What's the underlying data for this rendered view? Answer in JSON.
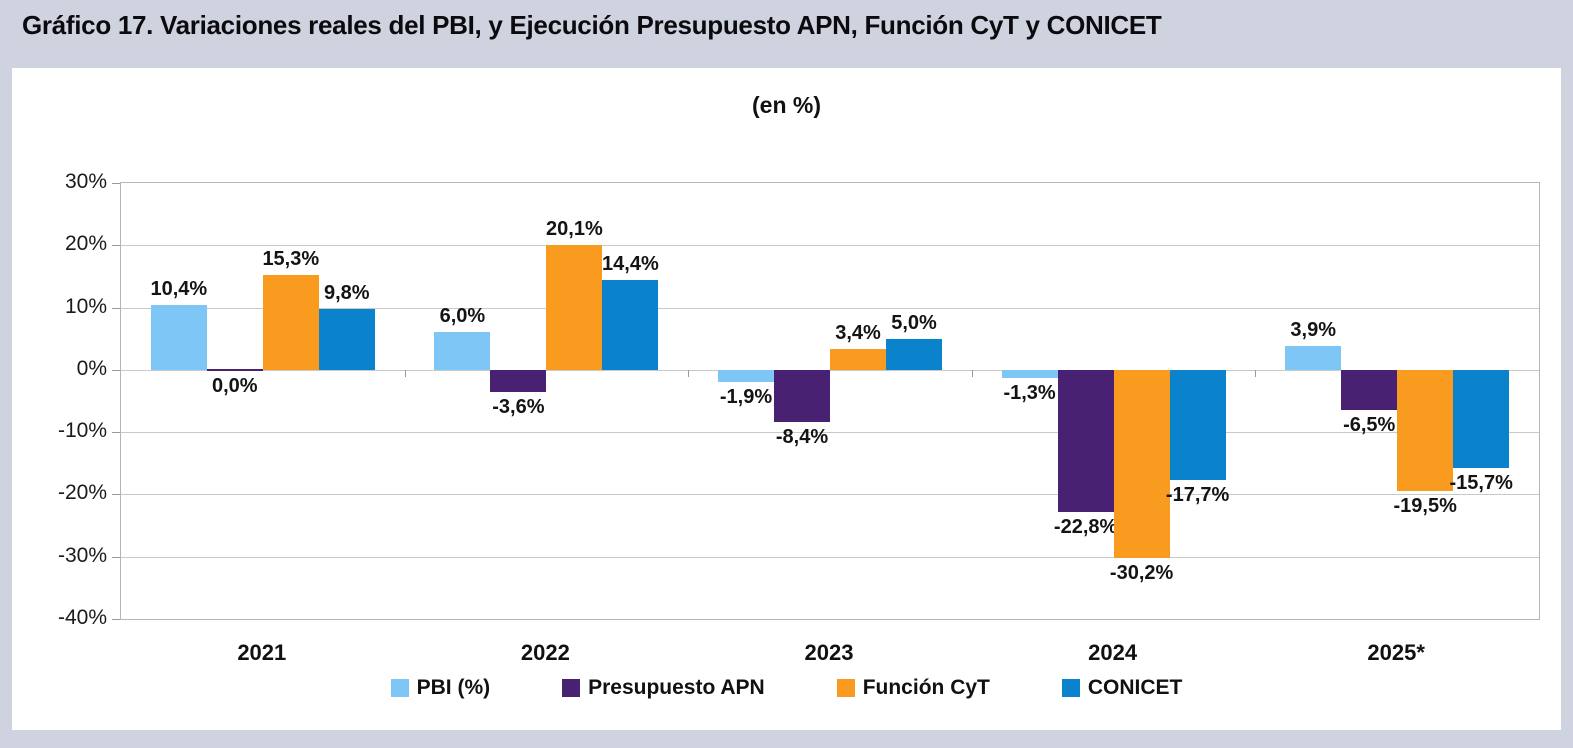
{
  "page": {
    "title": "Gráfico 17. Variaciones reales del PBI, y Ejecución Presupuesto APN, Función CyT y CONICET",
    "subtitle": "(en %)"
  },
  "chart_data": {
    "type": "bar",
    "title": "Gráfico 17. Variaciones reales del PBI, y Ejecución Presupuesto APN, Función CyT y CONICET",
    "subtitle": "(en %)",
    "categories": [
      "2021",
      "2022",
      "2023",
      "2024",
      "2025*"
    ],
    "series": [
      {
        "name": "PBI (%)",
        "color": "#7ec6f5",
        "values": [
          10.4,
          6.0,
          -1.9,
          -1.3,
          3.9
        ],
        "labels": [
          "10,4%",
          "6,0%",
          "-1,9%",
          "-1,3%",
          "3,9%"
        ]
      },
      {
        "name": "Presupuesto APN",
        "color": "#482173",
        "values": [
          0.0,
          -3.6,
          -8.4,
          -22.8,
          -6.5
        ],
        "labels": [
          "0,0%",
          "-3,6%",
          "-8,4%",
          "-22,8%",
          "-6,5%"
        ]
      },
      {
        "name": "Función CyT",
        "color": "#f99b1e",
        "values": [
          15.3,
          20.1,
          3.4,
          -30.2,
          -19.5
        ],
        "labels": [
          "15,3%",
          "20,1%",
          "3,4%",
          "-30,2%",
          "-19,5%"
        ]
      },
      {
        "name": "CONICET",
        "color": "#0a83cc",
        "values": [
          9.8,
          14.4,
          5.0,
          -17.7,
          -15.7
        ],
        "labels": [
          "9,8%",
          "14,4%",
          "5,0%",
          "-17,7%",
          "-15,7%"
        ]
      }
    ],
    "ylim": [
      -40,
      30
    ],
    "ytick_step": 10,
    "ytick_labels": [
      "30%",
      "20%",
      "10%",
      "0%",
      "-10%",
      "-20%",
      "-30%",
      "-40%"
    ],
    "grid": true,
    "legend_position": "bottom"
  }
}
